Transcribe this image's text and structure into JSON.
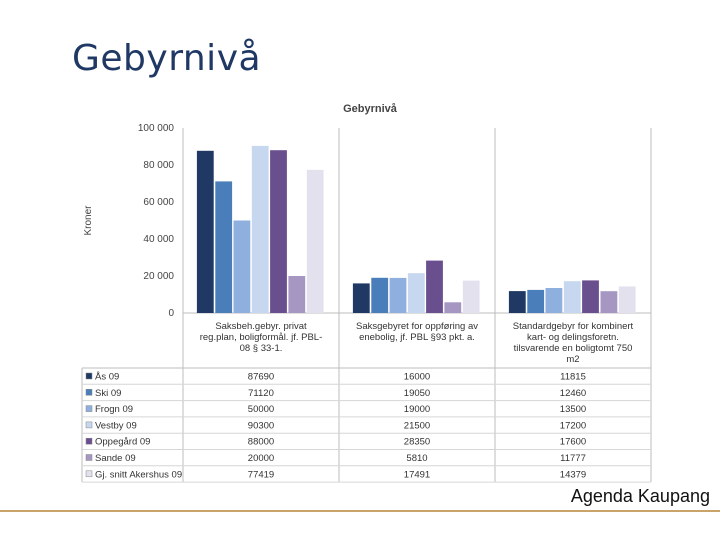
{
  "slide": {
    "title": "Gebyrnivå",
    "footer": "Agenda Kaupang"
  },
  "colors": {
    "footer_line": "#c8a46a",
    "title": "#1f3864"
  },
  "chart_data": {
    "type": "bar",
    "title": "Gebyrnivå",
    "xlabel": "",
    "ylabel": "Kroner",
    "ylim": [
      0,
      100000
    ],
    "yticks": [
      0,
      20000,
      40000,
      60000,
      80000,
      100000
    ],
    "ytick_labels": [
      "0",
      "20 000",
      "40 000",
      "60 000",
      "80 000",
      "100 000"
    ],
    "grid": false,
    "categories": [
      [
        "Saksbeh.gebyr. privat",
        "reg.plan, boligformål. jf. PBL-",
        "08 § 33-1."
      ],
      [
        "Saksgebyret for oppføring av",
        "enebolig, jf. PBL §93 pkt. a."
      ],
      [
        "Standardgebyr for kombinert",
        "kart- og delingsforetn.",
        "tilsvarende en boligtomt 750",
        "m2"
      ]
    ],
    "series": [
      {
        "name": "Ås 09",
        "color": "#1f3864",
        "values": [
          87690,
          16000,
          11815
        ],
        "labels": [
          "87690",
          "16000",
          "11815"
        ]
      },
      {
        "name": "Ski 09",
        "color": "#4a7ebb",
        "values": [
          71120,
          19050,
          12460
        ],
        "labels": [
          "71120",
          "19050",
          "12460"
        ]
      },
      {
        "name": "Frogn 09",
        "color": "#8fb0de",
        "values": [
          50000,
          19000,
          13500
        ],
        "labels": [
          "50000",
          "19000",
          "13500"
        ]
      },
      {
        "name": "Vestby 09",
        "color": "#c6d7ef",
        "values": [
          90300,
          21500,
          17200
        ],
        "labels": [
          "90300",
          "21500",
          "17200"
        ]
      },
      {
        "name": "Oppegård 09",
        "color": "#6a4f8f",
        "values": [
          88000,
          28350,
          17600
        ],
        "labels": [
          "88000",
          "28350",
          "17600"
        ]
      },
      {
        "name": "Sande 09",
        "color": "#a596c2",
        "values": [
          20000,
          5810,
          11777
        ],
        "labels": [
          "20000",
          "5810",
          "11777"
        ]
      },
      {
        "name": "Gj. snitt Akershus 09",
        "color": "#e4e1ee",
        "values": [
          77419,
          17491,
          14379
        ],
        "labels": [
          "77419",
          "17491",
          "14379"
        ]
      }
    ]
  }
}
